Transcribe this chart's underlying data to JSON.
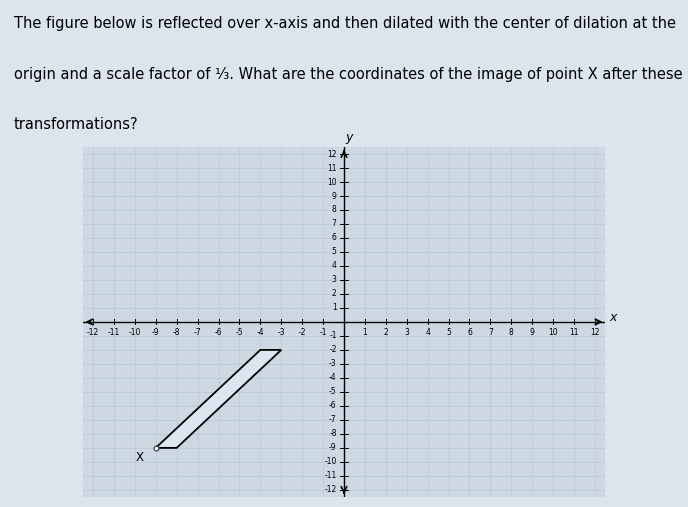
{
  "background_color": "#dce4ed",
  "plot_bg_color": "#cdd8e3",
  "grid_color": "#b8c8d8",
  "axis_color": "#000000",
  "shape_vertices": [
    [
      -9,
      -9
    ],
    [
      -8,
      -9
    ],
    [
      -3,
      -2
    ],
    [
      -4,
      -2
    ]
  ],
  "shape_fill": "#dce6f0",
  "shape_edge": "#000000",
  "point_X": [
    -9,
    -9
  ],
  "point_X_label": "X",
  "xlim": [
    -12.5,
    12.5
  ],
  "ylim": [
    -12.5,
    12.5
  ],
  "xticks": [
    -12,
    -11,
    -10,
    -9,
    -8,
    -7,
    -6,
    -5,
    -4,
    -3,
    -2,
    -1,
    1,
    2,
    3,
    4,
    5,
    6,
    7,
    8,
    9,
    10,
    11,
    12
  ],
  "yticks": [
    -12,
    -11,
    -10,
    -9,
    -8,
    -7,
    -6,
    -5,
    -4,
    -3,
    -2,
    -1,
    1,
    2,
    3,
    4,
    5,
    6,
    7,
    8,
    9,
    10,
    11,
    12
  ],
  "tick_fontsize": 5.5,
  "axis_label_fontsize": 9,
  "title_lines": [
    "The figure below is reflected over x-axis and then dilated with the center of dilation at the",
    "origin and a scale factor of ¹⁄₃. What are the coordinates of the image of point X after these",
    "transformations?"
  ],
  "title_fontsize": 10.5
}
